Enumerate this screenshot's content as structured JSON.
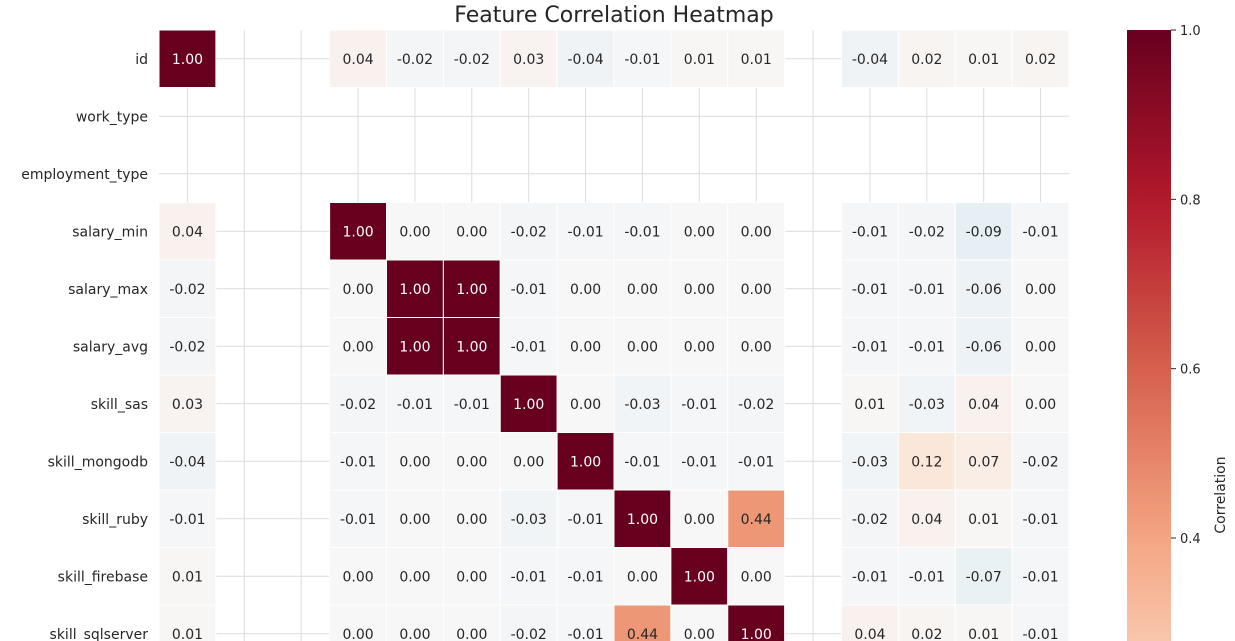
{
  "chart_data": {
    "type": "heatmap",
    "title": "Feature Correlation Heatmap",
    "row_labels": [
      "id",
      "work_type",
      "employment_type",
      "salary_min",
      "salary_max",
      "salary_avg",
      "skill_sas",
      "skill_mongodb",
      "skill_ruby",
      "skill_firebase",
      "skill_sqlserver"
    ],
    "columns_count": 16,
    "values": [
      [
        1.0,
        null,
        null,
        0.04,
        -0.02,
        -0.02,
        0.03,
        -0.04,
        -0.01,
        0.01,
        0.01,
        null,
        -0.04,
        0.02,
        0.01,
        0.02
      ],
      [
        null,
        null,
        null,
        null,
        null,
        null,
        null,
        null,
        null,
        null,
        null,
        null,
        null,
        null,
        null,
        null
      ],
      [
        null,
        null,
        null,
        null,
        null,
        null,
        null,
        null,
        null,
        null,
        null,
        null,
        null,
        null,
        null,
        null
      ],
      [
        0.04,
        null,
        null,
        1.0,
        -0.0,
        -0.0,
        -0.02,
        -0.01,
        -0.01,
        -0.0,
        -0.0,
        null,
        -0.01,
        -0.02,
        -0.09,
        -0.01
      ],
      [
        -0.02,
        null,
        null,
        -0.0,
        1.0,
        1.0,
        -0.01,
        -0.0,
        -0.0,
        -0.0,
        -0.0,
        null,
        -0.01,
        -0.01,
        -0.06,
        -0.0
      ],
      [
        -0.02,
        null,
        null,
        -0.0,
        1.0,
        1.0,
        -0.01,
        -0.0,
        -0.0,
        -0.0,
        -0.0,
        null,
        -0.01,
        -0.01,
        -0.06,
        -0.0
      ],
      [
        0.03,
        null,
        null,
        -0.02,
        -0.01,
        -0.01,
        1.0,
        -0.0,
        -0.03,
        -0.01,
        -0.02,
        null,
        0.01,
        -0.03,
        0.04,
        0.0
      ],
      [
        -0.04,
        null,
        null,
        -0.01,
        -0.0,
        -0.0,
        -0.0,
        1.0,
        -0.01,
        -0.01,
        -0.01,
        null,
        -0.03,
        0.12,
        0.07,
        -0.02
      ],
      [
        -0.01,
        null,
        null,
        -0.01,
        -0.0,
        -0.0,
        -0.03,
        -0.01,
        1.0,
        -0.0,
        0.44,
        null,
        -0.02,
        0.04,
        0.01,
        -0.01
      ],
      [
        0.01,
        null,
        null,
        -0.0,
        -0.0,
        -0.0,
        -0.01,
        -0.01,
        -0.0,
        1.0,
        -0.0,
        null,
        -0.01,
        -0.01,
        -0.07,
        -0.01
      ],
      [
        0.01,
        null,
        null,
        -0.0,
        -0.0,
        -0.0,
        -0.02,
        -0.01,
        0.44,
        -0.0,
        1.0,
        null,
        0.04,
        0.02,
        0.01,
        -0.01
      ]
    ],
    "colorbar": {
      "label": "Correlation",
      "ticks": [
        "0.4",
        "0.6",
        "0.8",
        "1.0"
      ],
      "tick_values": [
        0.4,
        0.6,
        0.8,
        1.0
      ],
      "colormap": "RdBu_r"
    },
    "grid": true
  }
}
